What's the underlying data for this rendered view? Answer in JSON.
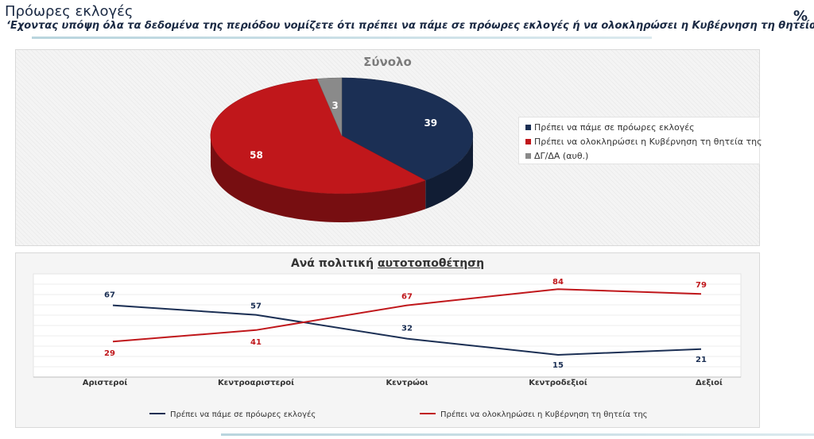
{
  "header": {
    "title": "Πρόωρες εκλογές",
    "question": "‘Εχοντας υπόψη όλα τα δεδομένα της περιόδου νομίζετε ότι πρέπει να πάμε σε πρόωρες εκλογές ή να ολοκληρώσει η Κυβέρνηση τη θητεία της;’",
    "unit": "%"
  },
  "colors": {
    "navy": "#1b2f54",
    "red": "#c0171b",
    "grey": "#8a8a8a"
  },
  "chart_data": [
    {
      "type": "pie",
      "title": "Σύνολο",
      "slices": [
        {
          "label": "Πρέπει να πάμε σε πρόωρες εκλογές",
          "value": 39,
          "color": "#1b2f54"
        },
        {
          "label": "Πρέπει να ολοκληρώσει η Κυβέρνηση τη θητεία της",
          "value": 58,
          "color": "#c0171b"
        },
        {
          "label": "ΔΓ/ΔΑ (αυθ.)",
          "value": 3,
          "color": "#8a8a8a"
        }
      ],
      "legend_position": "right"
    },
    {
      "type": "line",
      "title_prefix": "Ανά πολιτική ",
      "title_underlined": "αυτοτοποθέτηση",
      "categories": [
        "Αριστεροί",
        "Κεντροαριστεροί",
        "Κεντρώοι",
        "Κεντροδεξιοί",
        "Δεξιοί"
      ],
      "series": [
        {
          "name": "Πρέπει να πάμε σε πρόωρες εκλογές",
          "values": [
            67,
            57,
            32,
            15,
            21
          ],
          "color": "#1b2f54"
        },
        {
          "name": "Πρέπει να ολοκληρώσει η Κυβέρνηση τη θητεία της",
          "values": [
            29,
            41,
            67,
            84,
            79
          ],
          "color": "#c0171b"
        }
      ],
      "grid": true,
      "legend_position": "bottom"
    }
  ]
}
